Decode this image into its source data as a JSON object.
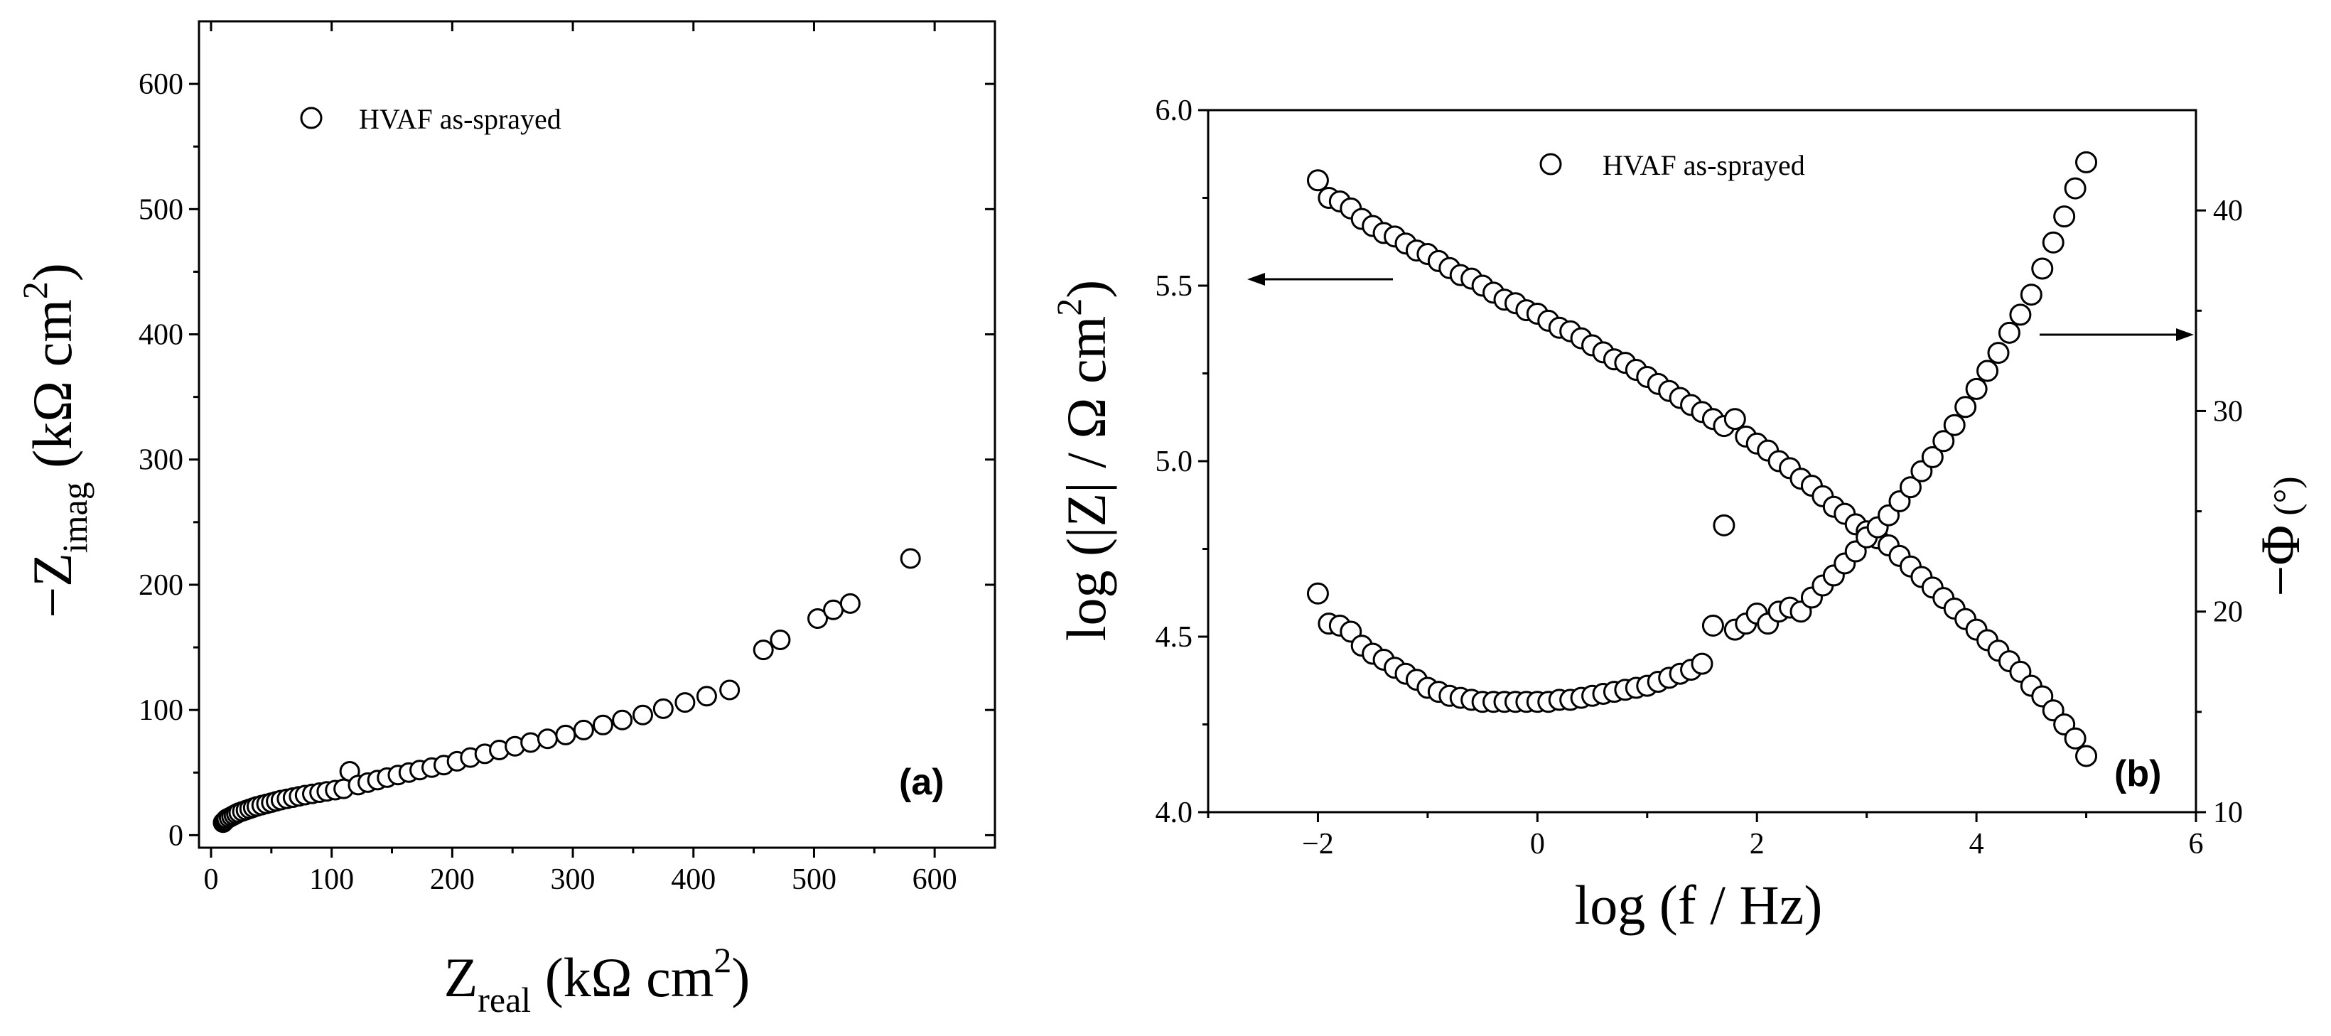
{
  "colors": {
    "marker_fill": "#ffffff",
    "marker_stroke": "#000000",
    "axis": "#000000"
  },
  "chart_data": [
    {
      "type": "scatter",
      "panel_label": "(a)",
      "legend": "HVAF as-sprayed",
      "xlabel": {
        "main": "Z",
        "sub": "real",
        "units": " (kΩ cm",
        "sup": "2",
        "close": ")"
      },
      "ylabel": {
        "main": "−Z",
        "sub": "imag",
        "units": " (kΩ cm",
        "sup": "2",
        "close": ")"
      },
      "xlim": [
        -10,
        650
      ],
      "ylim": [
        -10,
        650
      ],
      "xticks": [
        0,
        100,
        200,
        300,
        400,
        500,
        600
      ],
      "yticks": [
        0,
        100,
        200,
        300,
        400,
        500,
        600
      ],
      "x": [
        10,
        11,
        12,
        13,
        15,
        17,
        19,
        21,
        23,
        26,
        29,
        32,
        35,
        38,
        42,
        46,
        50,
        54,
        58,
        63,
        68,
        73,
        78,
        84,
        90,
        96,
        103,
        110,
        115,
        122,
        130,
        138,
        146,
        155,
        164,
        173,
        183,
        193,
        204,
        215,
        227,
        239,
        252,
        265,
        279,
        294,
        309,
        325,
        341,
        358,
        375,
        393,
        411,
        430,
        458,
        472,
        503,
        516,
        530,
        580
      ],
      "y": [
        10,
        11,
        12,
        13,
        14,
        15,
        16,
        17,
        18,
        19,
        20,
        21,
        22,
        23,
        24,
        25,
        26,
        27,
        28,
        29,
        30,
        31,
        32,
        33,
        34,
        35,
        36,
        37,
        51,
        40,
        42,
        44,
        46,
        48,
        50,
        52,
        54,
        56,
        59,
        62,
        65,
        68,
        71,
        74,
        77,
        80,
        84,
        88,
        92,
        96,
        101,
        106,
        111,
        116,
        148,
        156,
        173,
        180,
        185,
        221
      ]
    },
    {
      "type": "scatter",
      "panel_label": "(b)",
      "legend": "HVAF as-sprayed",
      "xlabel": "log (f / Hz)",
      "ylabel": {
        "pre": "log (|Z| / Ω cm",
        "sup": "2",
        "close": ")"
      },
      "y2label": {
        "text": "−Φ",
        "units": " (°)"
      },
      "xlim": [
        -3,
        6
      ],
      "ylim": [
        4.0,
        6.0
      ],
      "y2lim": [
        10,
        45
      ],
      "xticks": [
        -2,
        0,
        2,
        4,
        6
      ],
      "xtick_labels": [
        "−2",
        "0",
        "2",
        "4",
        "6"
      ],
      "yticks": [
        4.0,
        4.5,
        5.0,
        5.5,
        6.0
      ],
      "ytick_labels": [
        "4.0",
        "4.5",
        "5.0",
        "5.5",
        "6.0"
      ],
      "y2ticks": [
        10,
        20,
        30,
        40
      ],
      "y2tick_labels": [
        "10",
        "20",
        "30",
        "40"
      ],
      "series": [
        {
          "name": "log|Z|",
          "axis": "left",
          "x": [
            -2.0,
            -1.9,
            -1.8,
            -1.7,
            -1.6,
            -1.5,
            -1.4,
            -1.3,
            -1.2,
            -1.1,
            -1.0,
            -0.9,
            -0.8,
            -0.7,
            -0.6,
            -0.5,
            -0.4,
            -0.3,
            -0.2,
            -0.1,
            0.0,
            0.1,
            0.2,
            0.3,
            0.4,
            0.5,
            0.6,
            0.7,
            0.8,
            0.9,
            1.0,
            1.1,
            1.2,
            1.3,
            1.4,
            1.5,
            1.6,
            1.7,
            1.8,
            1.9,
            2.0,
            2.1,
            2.2,
            2.3,
            2.4,
            2.5,
            2.6,
            2.7,
            2.8,
            2.9,
            3.0,
            3.1,
            3.2,
            3.3,
            3.4,
            3.5,
            3.6,
            3.7,
            3.8,
            3.9,
            4.0,
            4.1,
            4.2,
            4.3,
            4.4,
            4.5,
            4.6,
            4.7,
            4.8,
            4.9,
            5.0
          ],
          "y": [
            5.8,
            5.75,
            5.74,
            5.72,
            5.69,
            5.67,
            5.65,
            5.64,
            5.62,
            5.6,
            5.59,
            5.57,
            5.55,
            5.53,
            5.52,
            5.5,
            5.48,
            5.46,
            5.45,
            5.43,
            5.42,
            5.4,
            5.38,
            5.37,
            5.35,
            5.33,
            5.31,
            5.29,
            5.28,
            5.26,
            5.24,
            5.22,
            5.2,
            5.18,
            5.16,
            5.14,
            5.12,
            5.1,
            5.12,
            5.07,
            5.05,
            5.03,
            5.0,
            4.98,
            4.95,
            4.93,
            4.9,
            4.87,
            4.85,
            4.82,
            4.8,
            4.78,
            4.76,
            4.73,
            4.7,
            4.67,
            4.64,
            4.61,
            4.58,
            4.55,
            4.52,
            4.49,
            4.46,
            4.43,
            4.4,
            4.36,
            4.33,
            4.29,
            4.25,
            4.21,
            4.16
          ]
        },
        {
          "name": "−Φ",
          "axis": "right",
          "x": [
            -2.0,
            -1.9,
            -1.8,
            -1.7,
            -1.6,
            -1.5,
            -1.4,
            -1.3,
            -1.2,
            -1.1,
            -1.0,
            -0.9,
            -0.8,
            -0.7,
            -0.6,
            -0.5,
            -0.4,
            -0.3,
            -0.2,
            -0.1,
            0.0,
            0.1,
            0.2,
            0.3,
            0.4,
            0.5,
            0.6,
            0.7,
            0.8,
            0.9,
            1.0,
            1.1,
            1.2,
            1.3,
            1.4,
            1.5,
            1.6,
            1.7,
            1.8,
            1.9,
            2.0,
            2.1,
            2.2,
            2.3,
            2.4,
            2.5,
            2.6,
            2.7,
            2.8,
            2.9,
            3.0,
            3.1,
            3.2,
            3.3,
            3.4,
            3.5,
            3.6,
            3.7,
            3.8,
            3.9,
            4.0,
            4.1,
            4.2,
            4.3,
            4.4,
            4.5,
            4.6,
            4.7,
            4.8,
            4.9,
            5.0
          ],
          "y": [
            20.9,
            19.4,
            19.3,
            19.0,
            18.3,
            17.9,
            17.6,
            17.2,
            16.9,
            16.6,
            16.2,
            16.0,
            15.8,
            15.7,
            15.6,
            15.5,
            15.5,
            15.5,
            15.5,
            15.5,
            15.5,
            15.5,
            15.6,
            15.6,
            15.7,
            15.8,
            15.9,
            16.0,
            16.1,
            16.2,
            16.3,
            16.5,
            16.7,
            16.9,
            17.1,
            17.4,
            19.3,
            24.3,
            19.1,
            19.4,
            19.9,
            19.4,
            20.0,
            20.2,
            20.0,
            20.7,
            21.3,
            21.8,
            22.4,
            23.0,
            23.7,
            24.2,
            24.8,
            25.5,
            26.2,
            27.0,
            27.7,
            28.5,
            29.3,
            30.2,
            31.1,
            32.0,
            32.9,
            33.9,
            34.8,
            35.8,
            37.1,
            38.4,
            39.7,
            41.1,
            42.4
          ]
        }
      ]
    }
  ]
}
